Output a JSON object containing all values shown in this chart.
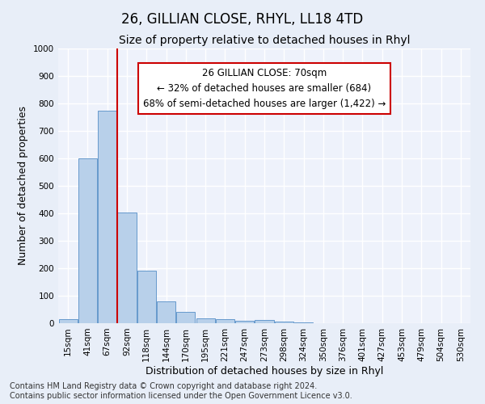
{
  "title": "26, GILLIAN CLOSE, RHYL, LL18 4TD",
  "subtitle": "Size of property relative to detached houses in Rhyl",
  "xlabel": "Distribution of detached houses by size in Rhyl",
  "ylabel": "Number of detached properties",
  "bar_labels": [
    "15sqm",
    "41sqm",
    "67sqm",
    "92sqm",
    "118sqm",
    "144sqm",
    "170sqm",
    "195sqm",
    "221sqm",
    "247sqm",
    "273sqm",
    "298sqm",
    "324sqm",
    "350sqm",
    "376sqm",
    "401sqm",
    "427sqm",
    "453sqm",
    "479sqm",
    "504sqm",
    "530sqm"
  ],
  "bar_values": [
    15,
    600,
    775,
    403,
    190,
    78,
    40,
    18,
    15,
    10,
    13,
    7,
    3,
    0,
    0,
    0,
    0,
    0,
    0,
    0,
    0
  ],
  "bar_color": "#b8d0ea",
  "bar_edge_color": "#6699cc",
  "vline_color": "#cc0000",
  "annotation_text": "26 GILLIAN CLOSE: 70sqm\n← 32% of detached houses are smaller (684)\n68% of semi-detached houses are larger (1,422) →",
  "annotation_box_color": "#ffffff",
  "annotation_box_edge_color": "#cc0000",
  "ylim": [
    0,
    1000
  ],
  "yticks": [
    0,
    100,
    200,
    300,
    400,
    500,
    600,
    700,
    800,
    900,
    1000
  ],
  "footer_line1": "Contains HM Land Registry data © Crown copyright and database right 2024.",
  "footer_line2": "Contains public sector information licensed under the Open Government Licence v3.0.",
  "bg_color": "#e8eef8",
  "plot_bg_color": "#eef2fb",
  "grid_color": "#ffffff",
  "title_fontsize": 12,
  "subtitle_fontsize": 10,
  "axis_label_fontsize": 9,
  "tick_fontsize": 7.5,
  "footer_fontsize": 7,
  "annotation_fontsize": 8.5
}
